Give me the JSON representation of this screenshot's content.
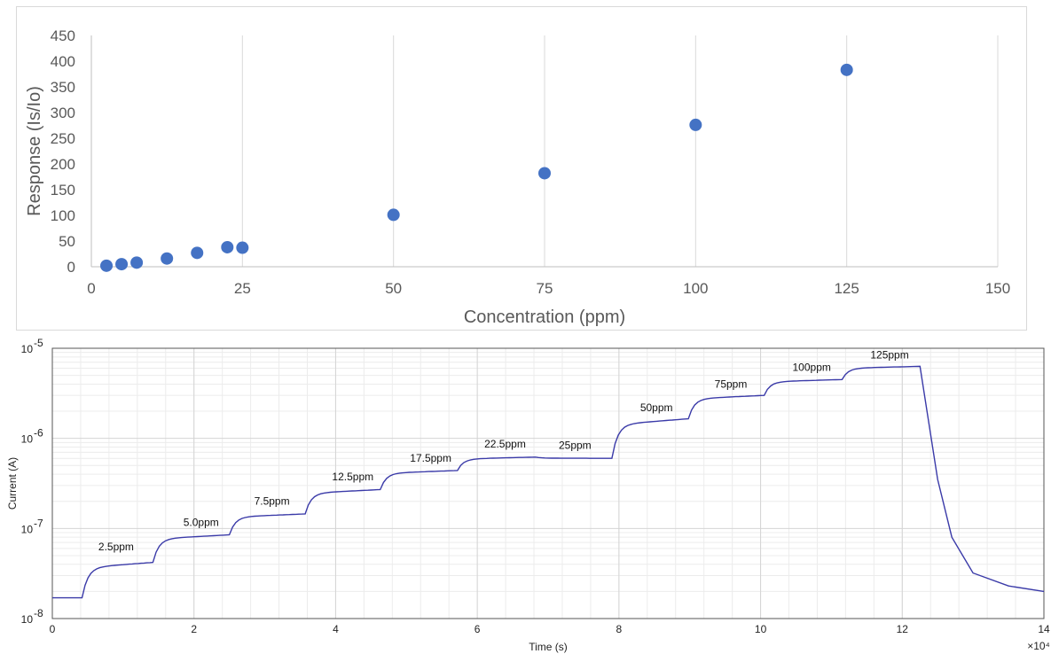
{
  "chart_data": [
    {
      "type": "scatter",
      "title": "",
      "xlabel": "Concentration (ppm)",
      "ylabel": "Response (Is/Io)",
      "xlim": [
        0,
        150
      ],
      "ylim": [
        0,
        450
      ],
      "x_ticks": [
        "0",
        "25",
        "50",
        "75",
        "100",
        "125",
        "150"
      ],
      "y_ticks": [
        "0",
        "50",
        "100",
        "150",
        "200",
        "250",
        "300",
        "350",
        "400",
        "450"
      ],
      "grid": "vertical",
      "marker_color": "#4472c4",
      "series": [
        {
          "x": [
            2.5,
            5.0,
            7.5,
            12.5,
            17.5,
            22.5,
            25,
            50,
            75,
            100,
            125
          ],
          "y": [
            2,
            5,
            8,
            16,
            27,
            38,
            37,
            101,
            182,
            276,
            383
          ]
        }
      ]
    },
    {
      "type": "line",
      "title": "",
      "xlabel": "Time (s)",
      "ylabel": "Current (A)",
      "x_scale_label": "×10⁴",
      "xlim": [
        0,
        14
      ],
      "ylim": [
        1e-08,
        1e-05
      ],
      "yscale": "log",
      "x_ticks": [
        "0",
        "2",
        "4",
        "6",
        "8",
        "10",
        "12",
        "14"
      ],
      "y_ticks": [
        {
          "base": "10",
          "exp": "-8"
        },
        {
          "base": "10",
          "exp": "-7"
        },
        {
          "base": "10",
          "exp": "-6"
        },
        {
          "base": "10",
          "exp": "-5"
        }
      ],
      "grid": "on",
      "line_color": "#3a3aa8",
      "annotations": [
        {
          "text": "2.5ppm",
          "x": 0.65,
          "y": 5e-08
        },
        {
          "text": "5.0ppm",
          "x": 1.85,
          "y": 9.3e-08
        },
        {
          "text": "7.5ppm",
          "x": 2.85,
          "y": 1.6e-07
        },
        {
          "text": "12.5ppm",
          "x": 3.95,
          "y": 3e-07
        },
        {
          "text": "17.5ppm",
          "x": 5.05,
          "y": 4.8e-07
        },
        {
          "text": "22.5ppm",
          "x": 6.1,
          "y": 6.9e-07
        },
        {
          "text": "25ppm",
          "x": 7.15,
          "y": 6.7e-07
        },
        {
          "text": "50ppm",
          "x": 8.3,
          "y": 1.75e-06
        },
        {
          "text": "75ppm",
          "x": 9.35,
          "y": 3.2e-06
        },
        {
          "text": "100ppm",
          "x": 10.45,
          "y": 4.9e-06
        },
        {
          "text": "125ppm",
          "x": 11.55,
          "y": 6.7e-06
        }
      ],
      "series": [
        {
          "steps": [
            {
              "t": 0.0,
              "level": 1.7e-08
            },
            {
              "t": 0.42,
              "level": 4.2e-08
            },
            {
              "t": 1.42,
              "level": 8.5e-08
            },
            {
              "t": 2.5,
              "level": 1.45e-07
            },
            {
              "t": 3.57,
              "level": 2.7e-07
            },
            {
              "t": 4.63,
              "level": 4.4e-07
            },
            {
              "t": 5.72,
              "level": 6.2e-07
            },
            {
              "t": 6.82,
              "level": 6e-07
            },
            {
              "t": 7.9,
              "level": 1.65e-06
            },
            {
              "t": 8.98,
              "level": 3e-06
            },
            {
              "t": 10.05,
              "level": 4.5e-06
            },
            {
              "t": 11.15,
              "level": 6.3e-06
            }
          ],
          "gas_off_time": 12.25,
          "recovery": [
            {
              "t": 12.25,
              "v": 6.3e-06
            },
            {
              "t": 12.35,
              "v": 2e-06
            },
            {
              "t": 12.5,
              "v": 3.5e-07
            },
            {
              "t": 12.7,
              "v": 8e-08
            },
            {
              "t": 13.0,
              "v": 3.2e-08
            },
            {
              "t": 13.5,
              "v": 2.3e-08
            },
            {
              "t": 14.0,
              "v": 2e-08
            }
          ]
        }
      ]
    }
  ]
}
